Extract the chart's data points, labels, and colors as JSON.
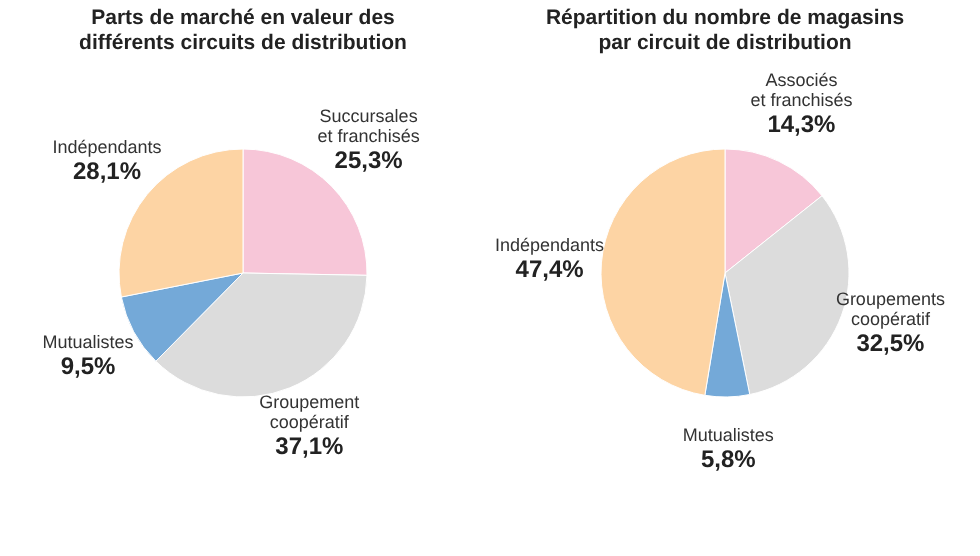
{
  "chart_data": [
    {
      "type": "pie",
      "title": [
        "Parts de marché en valeur des",
        "différents circuits de distribution"
      ],
      "categories": [
        "Succursales et franchisés",
        "Groupement coopératif",
        "Mutualistes",
        "Indépendants"
      ],
      "values": [
        25.3,
        37.1,
        9.5,
        28.1
      ],
      "value_labels": [
        "25,3%",
        "37,1%",
        "9,5%",
        "28,1%"
      ],
      "colors": [
        "#f7c6d8",
        "#dcdcdc",
        "#74a9d8",
        "#fdd4a4"
      ]
    },
    {
      "type": "pie",
      "title": [
        "Répartition du nombre de magasins",
        "par circuit de distribution"
      ],
      "categories": [
        "Associés et franchisés",
        "Groupements coopératif",
        "Mutualistes",
        "Indépendants"
      ],
      "values": [
        14.3,
        32.5,
        5.8,
        47.4
      ],
      "value_labels": [
        "14,3%",
        "32,5%",
        "5,8%",
        "47,4%"
      ],
      "colors": [
        "#f7c6d8",
        "#dcdcdc",
        "#74a9d8",
        "#fdd4a4"
      ]
    }
  ]
}
